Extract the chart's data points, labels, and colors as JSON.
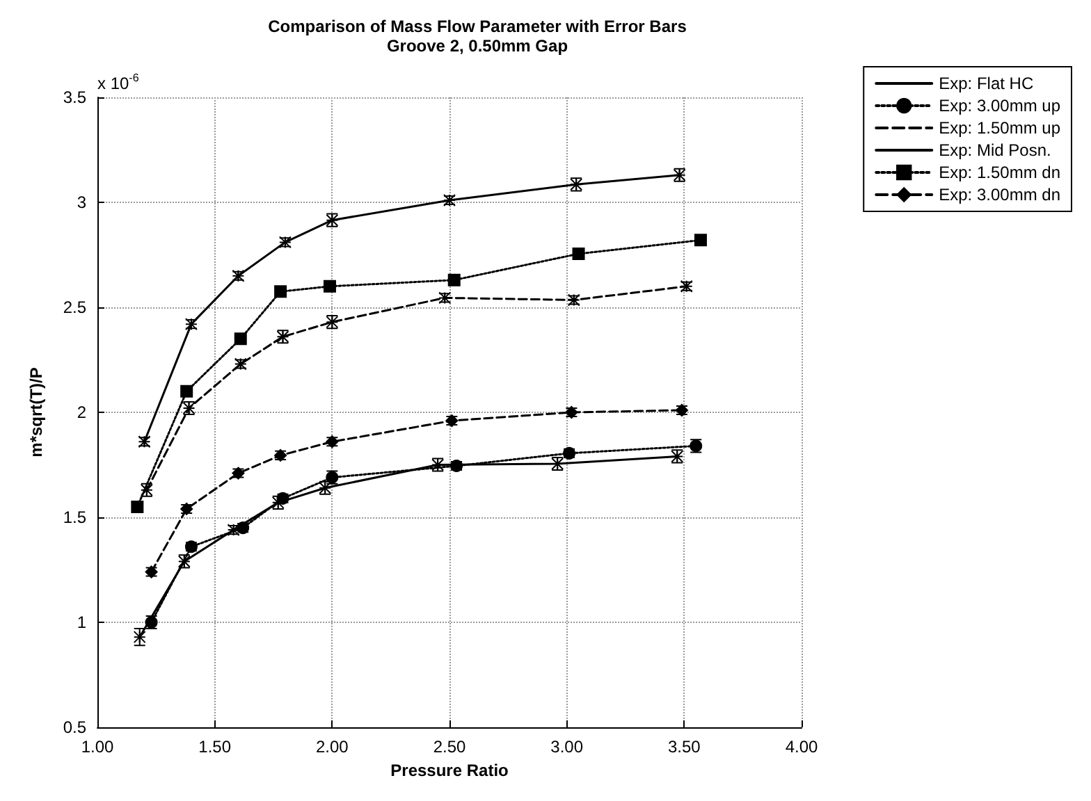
{
  "chart_data": {
    "type": "line",
    "title": "Comparison of Mass Flow Parameter with Error Bars",
    "subtitle": "Groove 2, 0.50mm Gap",
    "xlabel": "Pressure Ratio",
    "ylabel": "m*sqrt(T)/P",
    "annotations": [
      "x 10$^{-6}$"
    ],
    "xlim": [
      1,
      4
    ],
    "xticks": [
      {
        "value": 1,
        "label": "1.00"
      },
      {
        "value": 1.5,
        "label": "1.50"
      },
      {
        "value": 2,
        "label": "2.00"
      },
      {
        "value": 2.5,
        "label": "2.50"
      },
      {
        "value": 3,
        "label": "3.00"
      },
      {
        "value": 3.5,
        "label": "3.50"
      },
      {
        "value": 4,
        "label": "4.00"
      }
    ],
    "ylim": [
      0.5,
      3.5
    ],
    "yticks": [
      0.5,
      1,
      1.5,
      2,
      2.5,
      3,
      3.5
    ],
    "grid": true,
    "legend": "top right",
    "series": [
      {
        "name": "Exp: Flat HC",
        "color": "#000000",
        "marker": "cross",
        "line_style": "solid",
        "x": [
          1.18,
          1.37,
          1.58,
          1.77,
          1.97,
          2.45,
          2.96,
          3.47
        ],
        "values": [
          0.93,
          1.29,
          1.44,
          1.57,
          1.64,
          1.75,
          1.755,
          1.79
        ],
        "errors": [
          0.04,
          0.03,
          0.02,
          0.03,
          0.03,
          0.03,
          0.03,
          0.03
        ]
      },
      {
        "name": "Exp: 3.00mm up",
        "color": "#000000",
        "marker": "circle",
        "line_style": "dotted",
        "x": [
          1.23,
          1.4,
          1.62,
          1.79,
          2.0,
          2.53,
          3.01,
          3.55
        ],
        "values": [
          1.0,
          1.36,
          1.45,
          1.59,
          1.69,
          1.745,
          1.805,
          1.84
        ],
        "errors": [
          0.03,
          0.02,
          0.02,
          0.02,
          0.03,
          0.02,
          0.02,
          0.03
        ]
      },
      {
        "name": "Exp: 1.50mm up",
        "color": "#000000",
        "marker": "cross",
        "line_style": "dashed",
        "x": [
          1.21,
          1.39,
          1.61,
          1.79,
          2.0,
          2.48,
          3.03,
          3.51
        ],
        "values": [
          1.63,
          2.02,
          2.23,
          2.36,
          2.43,
          2.545,
          2.535,
          2.6
        ],
        "errors": [
          0.03,
          0.03,
          0.02,
          0.03,
          0.03,
          0.02,
          0.02,
          0.02
        ]
      },
      {
        "name": "Exp: Mid Posn.",
        "color": "#000000",
        "marker": "cross",
        "line_style": "solid",
        "x": [
          1.2,
          1.4,
          1.6,
          1.8,
          2.0,
          2.5,
          3.04,
          3.48
        ],
        "values": [
          1.86,
          2.42,
          2.65,
          2.81,
          2.915,
          3.01,
          3.085,
          3.13
        ],
        "errors": [
          0.02,
          0.02,
          0.02,
          0.02,
          0.03,
          0.02,
          0.03,
          0.03
        ]
      },
      {
        "name": "Exp: 1.50mm dn",
        "color": "#000000",
        "marker": "square",
        "line_style": "dotted",
        "x": [
          1.17,
          1.38,
          1.61,
          1.78,
          1.99,
          2.52,
          3.05,
          3.57
        ],
        "values": [
          1.55,
          2.1,
          2.35,
          2.575,
          2.6,
          2.63,
          2.755,
          2.82
        ]
      },
      {
        "name": "Exp: 3.00mm dn",
        "color": "#000000",
        "marker": "diamond",
        "line_style": "dashed",
        "x": [
          1.23,
          1.38,
          1.6,
          1.78,
          2.0,
          2.51,
          3.02,
          3.49
        ],
        "values": [
          1.24,
          1.54,
          1.71,
          1.795,
          1.86,
          1.96,
          2.0,
          2.01
        ],
        "errors": [
          0.02,
          0.02,
          0.02,
          0.02,
          0.02,
          0.02,
          0.02,
          0.02
        ]
      }
    ]
  }
}
